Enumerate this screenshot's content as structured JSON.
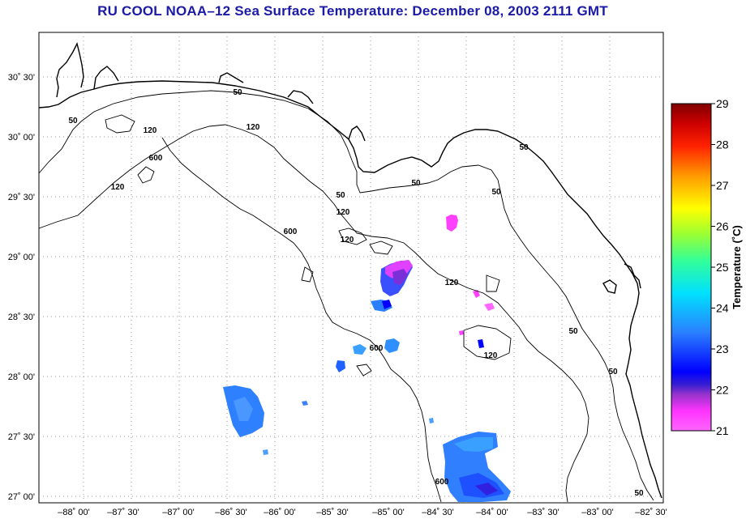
{
  "title": "RU COOL  NOAA–12  Sea Surface Temperature:  December 08, 2003 2111 GMT",
  "map": {
    "lon_labels": [
      "–88˚ 00'",
      "–87˚ 30'",
      "–87˚ 00'",
      "–86˚ 30'",
      "–86˚ 00'",
      "–85˚ 30'",
      "–85˚ 00'",
      "–84˚ 30'",
      "–84˚ 00'",
      "–83˚ 30'",
      "–83˚ 00'",
      "–82˚ 30'"
    ],
    "lat_labels": [
      "30˚ 30'",
      "30˚ 00'",
      "29˚ 30'",
      "29˚ 00'",
      "28˚ 30'",
      "28˚ 00'",
      "27˚ 30'",
      "27˚ 00'"
    ],
    "contour_labels": [
      "50",
      "50",
      "50",
      "50",
      "50",
      "50",
      "50",
      "50",
      "50",
      "120",
      "120",
      "120",
      "120",
      "120",
      "120",
      "120",
      "600",
      "600",
      "600",
      "600"
    ]
  },
  "colorbar": {
    "label": "Temperature (˚C)",
    "ticks": [
      "29",
      "28",
      "27",
      "26",
      "25",
      "24",
      "23",
      "22",
      "21"
    ]
  },
  "colors": {
    "title": "#1a1aa6",
    "grid": "#9a9a9a",
    "contour": "#000000"
  }
}
